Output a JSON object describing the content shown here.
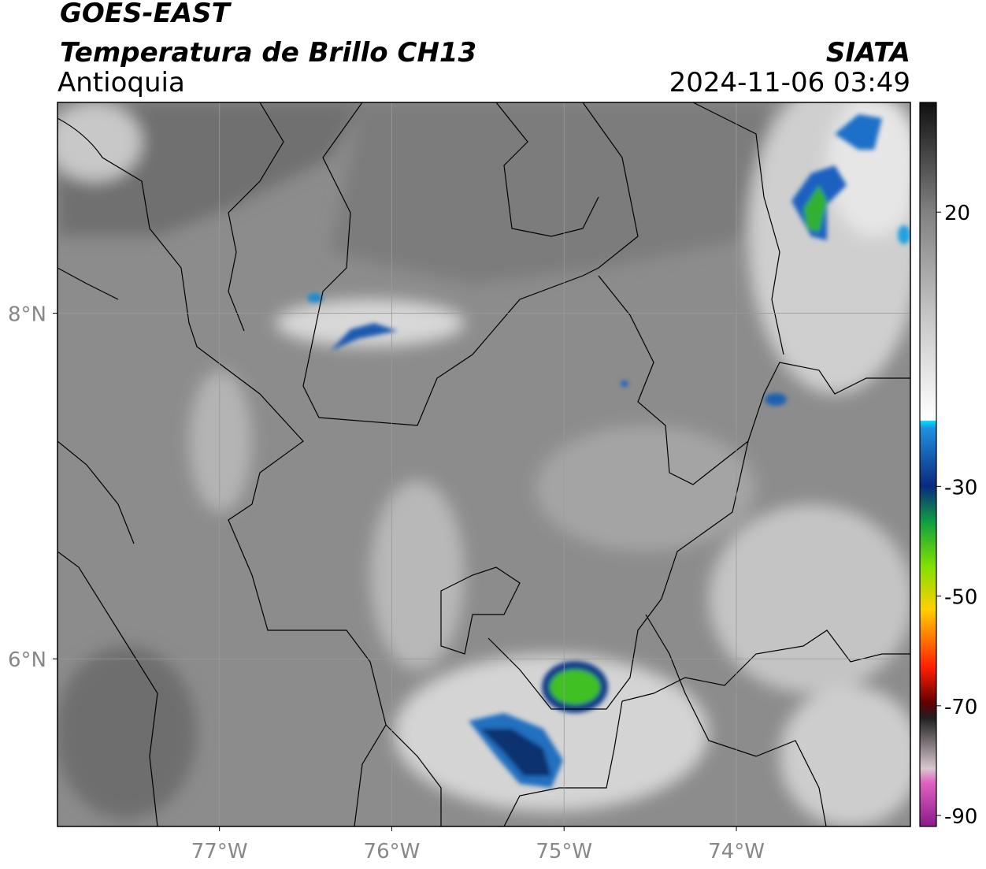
{
  "header": {
    "title": "GOES-EAST",
    "subtitle": "Temperatura de Brillo CH13",
    "region": "Antioquia",
    "source": "SIATA",
    "datetime": "2024-11-06 03:49"
  },
  "map": {
    "xlim": [
      -77.94,
      -72.99
    ],
    "ylim": [
      5.03,
      9.22
    ],
    "xticks": [
      {
        "value": -77,
        "label": "77°W"
      },
      {
        "value": -76,
        "label": "76°W"
      },
      {
        "value": -75,
        "label": "75°W"
      },
      {
        "value": -74,
        "label": "74°W"
      }
    ],
    "yticks": [
      {
        "value": 8,
        "label": "8°N"
      },
      {
        "value": 6,
        "label": "6°N"
      }
    ],
    "grid": true
  },
  "colorbar": {
    "lim": [
      -92,
      40
    ],
    "ticks": [
      20,
      -30,
      -50,
      -70,
      -90
    ]
  }
}
